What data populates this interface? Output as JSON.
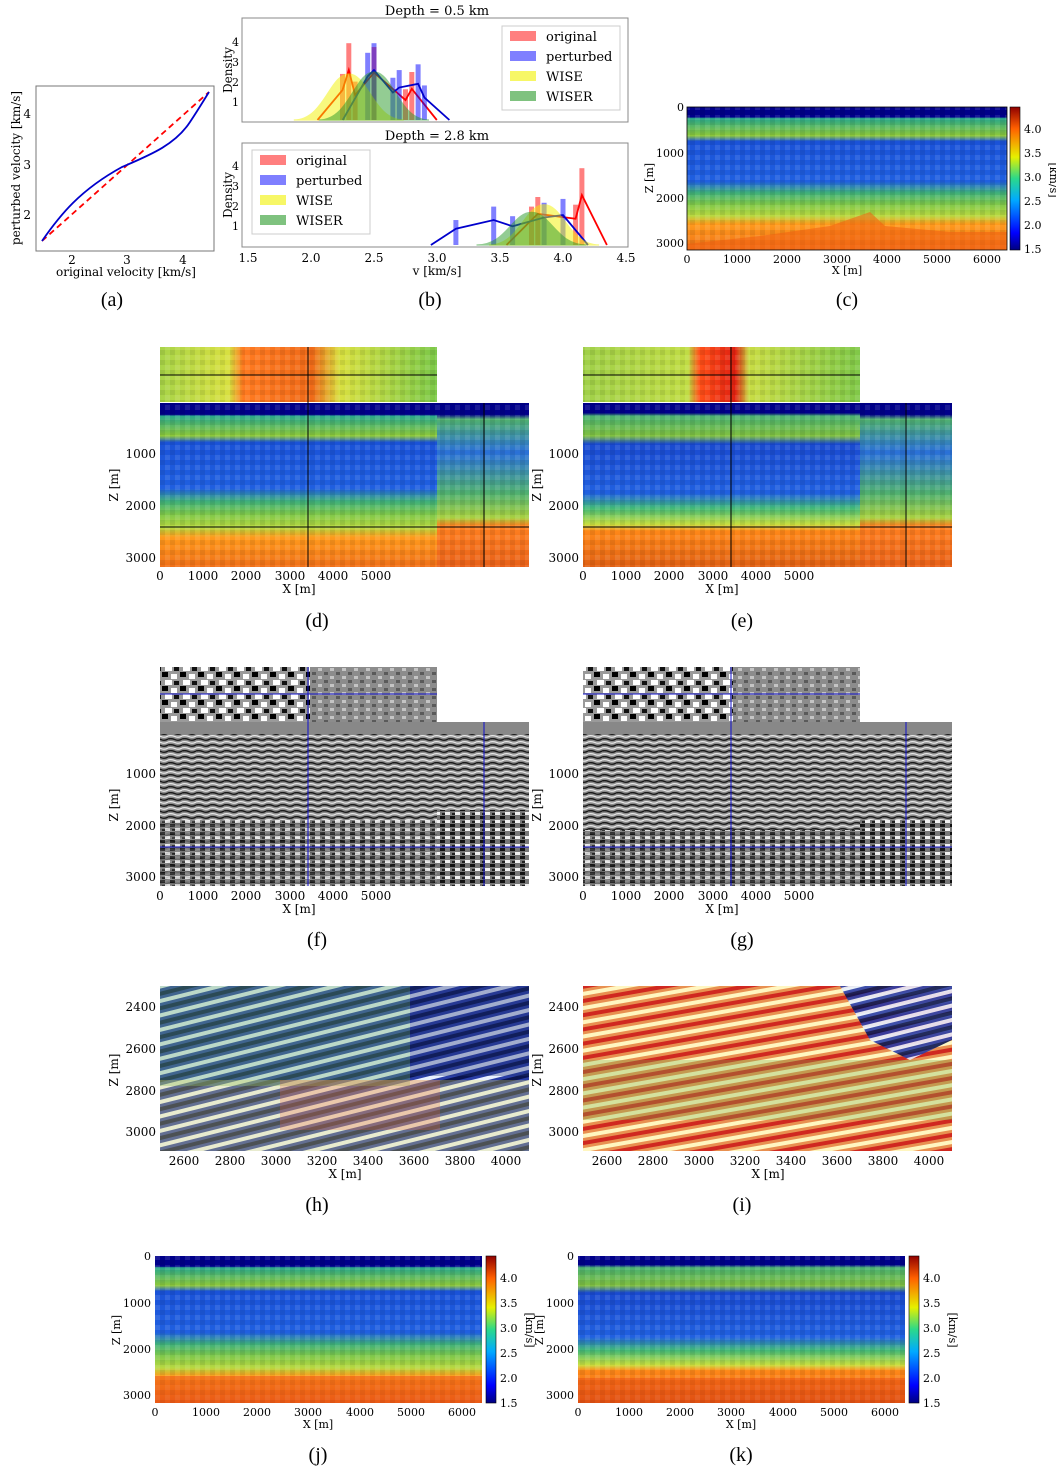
{
  "colors": {
    "red": "#ff0000",
    "blue": "#0000cc",
    "yellow": "#f2f200",
    "green": "#2a9a2a",
    "guide_black": "#000000",
    "guide_blue": "#1010cc"
  },
  "panels": {
    "a": {
      "caption": "(a)",
      "xlabel": "original velocity [km/s]",
      "ylabel": "perturbed velocity [km/s]",
      "xticks": [
        "2",
        "3",
        "4"
      ],
      "yticks": [
        "2",
        "3",
        "4"
      ]
    },
    "b": {
      "caption": "(b)",
      "top_title": "Depth = 0.5 km",
      "bottom_title": "Depth = 2.8 km",
      "ylabel": "Density",
      "xlabel": "v [km/s]",
      "xticks": [
        "1.5",
        "2.0",
        "2.5",
        "3.0",
        "3.5",
        "4.0",
        "4.5"
      ],
      "yticks": [
        "1",
        "2",
        "3",
        "4"
      ],
      "legend": [
        "original",
        "perturbed",
        "WISE",
        "WISER"
      ]
    },
    "c": {
      "caption": "(c)",
      "xlabel": "X [m]",
      "ylabel": "Z [m]",
      "xticks": [
        "0",
        "1000",
        "2000",
        "3000",
        "4000",
        "5000",
        "6000"
      ],
      "yticks": [
        "0",
        "1000",
        "2000",
        "3000"
      ],
      "cbar_label": "[km/s]",
      "cbar_ticks": [
        "4.0",
        "3.5",
        "3.0",
        "2.5",
        "2.0",
        "1.5"
      ]
    },
    "d": {
      "caption": "(d)",
      "xlabel": "X [m]",
      "ylabel": "Z [m]",
      "xticks": [
        "0",
        "1000",
        "2000",
        "3000",
        "4000",
        "5000"
      ],
      "yticks": [
        "1000",
        "2000",
        "3000"
      ]
    },
    "e": {
      "caption": "(e)",
      "xlabel": "X [m]",
      "ylabel": "Z [m]",
      "xticks": [
        "0",
        "1000",
        "2000",
        "3000",
        "4000",
        "5000"
      ],
      "yticks": [
        "1000",
        "2000",
        "3000"
      ]
    },
    "f": {
      "caption": "(f)",
      "xlabel": "X [m]",
      "ylabel": "Z [m]",
      "xticks": [
        "0",
        "1000",
        "2000",
        "3000",
        "4000",
        "5000"
      ],
      "yticks": [
        "1000",
        "2000",
        "3000"
      ]
    },
    "g": {
      "caption": "(g)",
      "xlabel": "X [m]",
      "ylabel": "Z [m]",
      "xticks": [
        "0",
        "1000",
        "2000",
        "3000",
        "4000",
        "5000"
      ],
      "yticks": [
        "1000",
        "2000",
        "3000"
      ]
    },
    "h": {
      "caption": "(h)",
      "xlabel": "X [m]",
      "ylabel": "Z [m]",
      "xticks": [
        "2600",
        "2800",
        "3000",
        "3200",
        "3400",
        "3600",
        "3800",
        "4000"
      ],
      "yticks": [
        "2400",
        "2600",
        "2800",
        "3000"
      ]
    },
    "i": {
      "caption": "(i)",
      "xlabel": "X [m]",
      "ylabel": "Z [m]",
      "xticks": [
        "2600",
        "2800",
        "3000",
        "3200",
        "3400",
        "3600",
        "3800",
        "4000"
      ],
      "yticks": [
        "2400",
        "2600",
        "2800",
        "3000"
      ]
    },
    "j": {
      "caption": "(j)",
      "xlabel": "X [m]",
      "ylabel": "Z [m]",
      "xticks": [
        "0",
        "1000",
        "2000",
        "3000",
        "4000",
        "5000",
        "6000"
      ],
      "yticks": [
        "0",
        "1000",
        "2000",
        "3000"
      ],
      "cbar_label": "[km/s]",
      "cbar_ticks": [
        "4.0",
        "3.5",
        "3.0",
        "2.5",
        "2.0",
        "1.5"
      ]
    },
    "k": {
      "caption": "(k)",
      "xlabel": "X [m]",
      "ylabel": "Z [m]",
      "xticks": [
        "0",
        "1000",
        "2000",
        "3000",
        "4000",
        "5000",
        "6000"
      ],
      "yticks": [
        "0",
        "1000",
        "2000",
        "3000"
      ],
      "cbar_label": "[km/s]",
      "cbar_ticks": [
        "4.0",
        "3.5",
        "3.0",
        "2.5",
        "2.0",
        "1.5"
      ]
    }
  },
  "chart_data": [
    {
      "panel": "a",
      "type": "line",
      "xlabel": "original velocity [km/s]",
      "ylabel": "perturbed velocity [km/s]",
      "xlim": [
        1.5,
        4.5
      ],
      "ylim": [
        1.5,
        4.5
      ],
      "series": [
        {
          "style": "dashed",
          "color": "red",
          "x": [
            1.5,
            4.5
          ],
          "y": [
            1.5,
            4.5
          ]
        },
        {
          "style": "solid",
          "color": "blue",
          "x": [
            1.5,
            1.8,
            2.1,
            2.4,
            2.7,
            3.0,
            3.3,
            3.6,
            3.9,
            4.2,
            4.5
          ],
          "y": [
            1.5,
            1.95,
            2.35,
            2.65,
            2.85,
            3.0,
            3.12,
            3.28,
            3.55,
            3.95,
            4.5
          ]
        }
      ]
    },
    {
      "panel": "b-top",
      "type": "bar",
      "title": "Depth = 0.5 km",
      "ylabel": "Density",
      "xlim": [
        1.5,
        4.5
      ],
      "ylim": [
        0,
        5
      ],
      "series": [
        {
          "name": "original",
          "bins": [
            [
              2.25,
              2.4
            ],
            [
              2.3,
              4.0
            ],
            [
              2.35,
              2.0
            ],
            [
              2.5,
              3.8
            ],
            [
              2.75,
              1.6
            ],
            [
              2.8,
              2.5
            ]
          ]
        },
        {
          "name": "perturbed",
          "bins": [
            [
              2.45,
              3.5
            ],
            [
              2.5,
              4.0
            ],
            [
              2.65,
              2.2
            ],
            [
              2.7,
              2.6
            ],
            [
              2.85,
              2.9
            ],
            [
              2.9,
              1.8
            ]
          ]
        },
        {
          "name": "WISE",
          "peak_x": 2.3,
          "peak_y": 2.4
        },
        {
          "name": "WISER",
          "peak_x": 2.5,
          "peak_y": 2.5
        }
      ]
    },
    {
      "panel": "b-bottom",
      "type": "bar",
      "title": "Depth = 2.8 km",
      "xlabel": "v [km/s]",
      "ylabel": "Density",
      "xlim": [
        1.5,
        4.5
      ],
      "ylim": [
        0,
        5
      ],
      "series": [
        {
          "name": "original",
          "bins": [
            [
              3.75,
              2.0
            ],
            [
              3.8,
              2.5
            ],
            [
              4.1,
              2.1
            ],
            [
              4.15,
              4.0
            ]
          ]
        },
        {
          "name": "perturbed",
          "bins": [
            [
              3.15,
              1.3
            ],
            [
              3.45,
              2.0
            ],
            [
              3.6,
              1.5
            ],
            [
              3.85,
              2.2
            ],
            [
              4.0,
              2.4
            ]
          ]
        },
        {
          "name": "WISE",
          "peak_x": 3.85,
          "peak_y": 2.1
        },
        {
          "name": "WISER",
          "peak_x": 3.75,
          "peak_y": 1.7
        }
      ]
    }
  ]
}
